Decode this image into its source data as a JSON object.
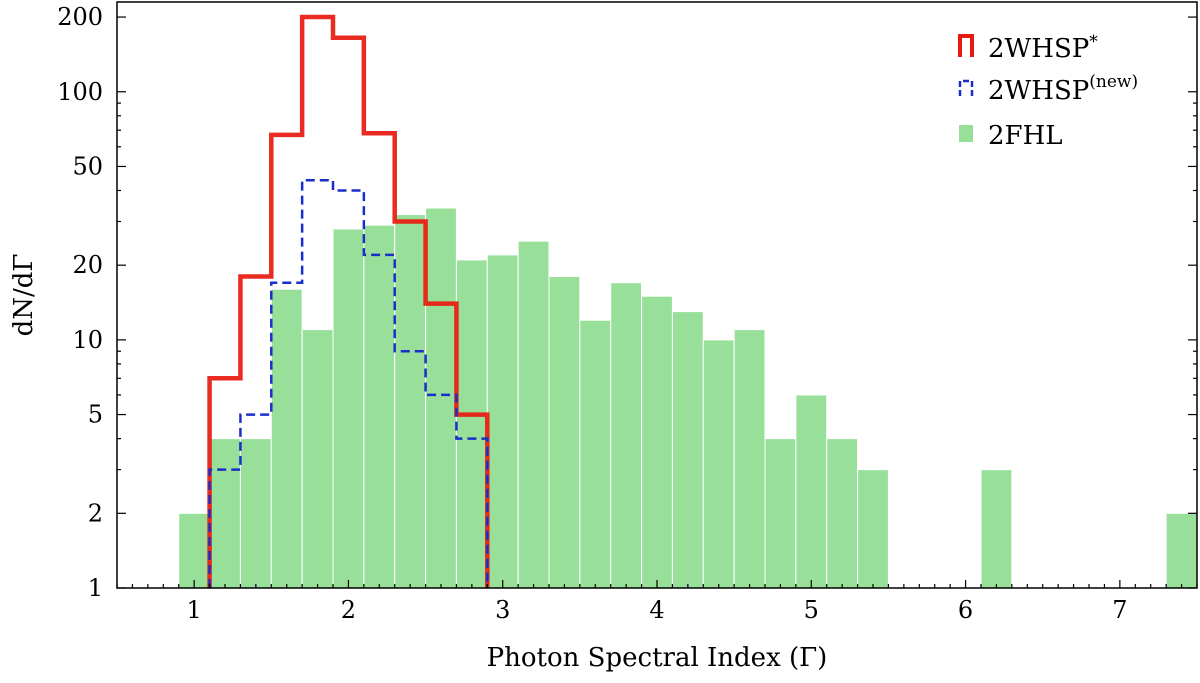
{
  "chart_data": {
    "type": "bar",
    "xlabel": "Photon Spectral Index (Γ)",
    "ylabel": "dN/dΓ",
    "yscale": "log",
    "xlim": [
      0.5,
      7.5
    ],
    "ylim": [
      1,
      230
    ],
    "xticks": [
      1,
      2,
      3,
      4,
      5,
      6,
      7
    ],
    "xtick_labels": [
      "1",
      "2",
      "3",
      "4",
      "5",
      "6",
      "7"
    ],
    "yticks": [
      1,
      2,
      5,
      10,
      20,
      50,
      100,
      200
    ],
    "ytick_labels": [
      "1",
      "2",
      "5",
      "10",
      "20",
      "50",
      "100",
      "200"
    ],
    "grid": false,
    "legend_position": "top-right",
    "series": [
      {
        "name": "2FHL",
        "kind": "bars",
        "color": "#98e09a",
        "bin_width": 0.2,
        "bin_centers": [
          1.0,
          1.2,
          1.4,
          1.6,
          1.8,
          2.0,
          2.2,
          2.4,
          2.6,
          2.8,
          3.0,
          3.2,
          3.4,
          3.6,
          3.8,
          4.0,
          4.2,
          4.4,
          4.6,
          4.8,
          5.0,
          5.2,
          5.4,
          6.2,
          7.4
        ],
        "values": [
          2,
          4,
          4,
          16,
          11,
          28,
          29,
          32,
          34,
          21,
          22,
          25,
          18,
          12,
          17,
          15,
          13,
          10,
          11,
          4,
          6,
          4,
          3,
          3,
          2
        ]
      },
      {
        "name": "2WHSP*",
        "kind": "step",
        "style": "solid",
        "color": "#e8190f",
        "bin_edges": [
          1.1,
          1.3,
          1.5,
          1.7,
          1.9,
          2.1,
          2.3,
          2.5,
          2.7,
          2.9
        ],
        "values": [
          7,
          18,
          67,
          200,
          165,
          68,
          30,
          14,
          5
        ]
      },
      {
        "name": "2WHSP(new)",
        "kind": "step",
        "style": "dashed",
        "color": "#1a2fc9",
        "bin_edges": [
          1.1,
          1.3,
          1.5,
          1.7,
          1.9,
          2.1,
          2.3,
          2.5,
          2.7,
          2.9
        ],
        "values": [
          3,
          5,
          17,
          44,
          40,
          22,
          9,
          6,
          4
        ]
      }
    ],
    "legend": [
      {
        "label": "2WHSP",
        "superscript": "*"
      },
      {
        "label": "2WHSP",
        "superscript": "(new)"
      },
      {
        "label": "2FHL",
        "superscript": ""
      }
    ]
  }
}
